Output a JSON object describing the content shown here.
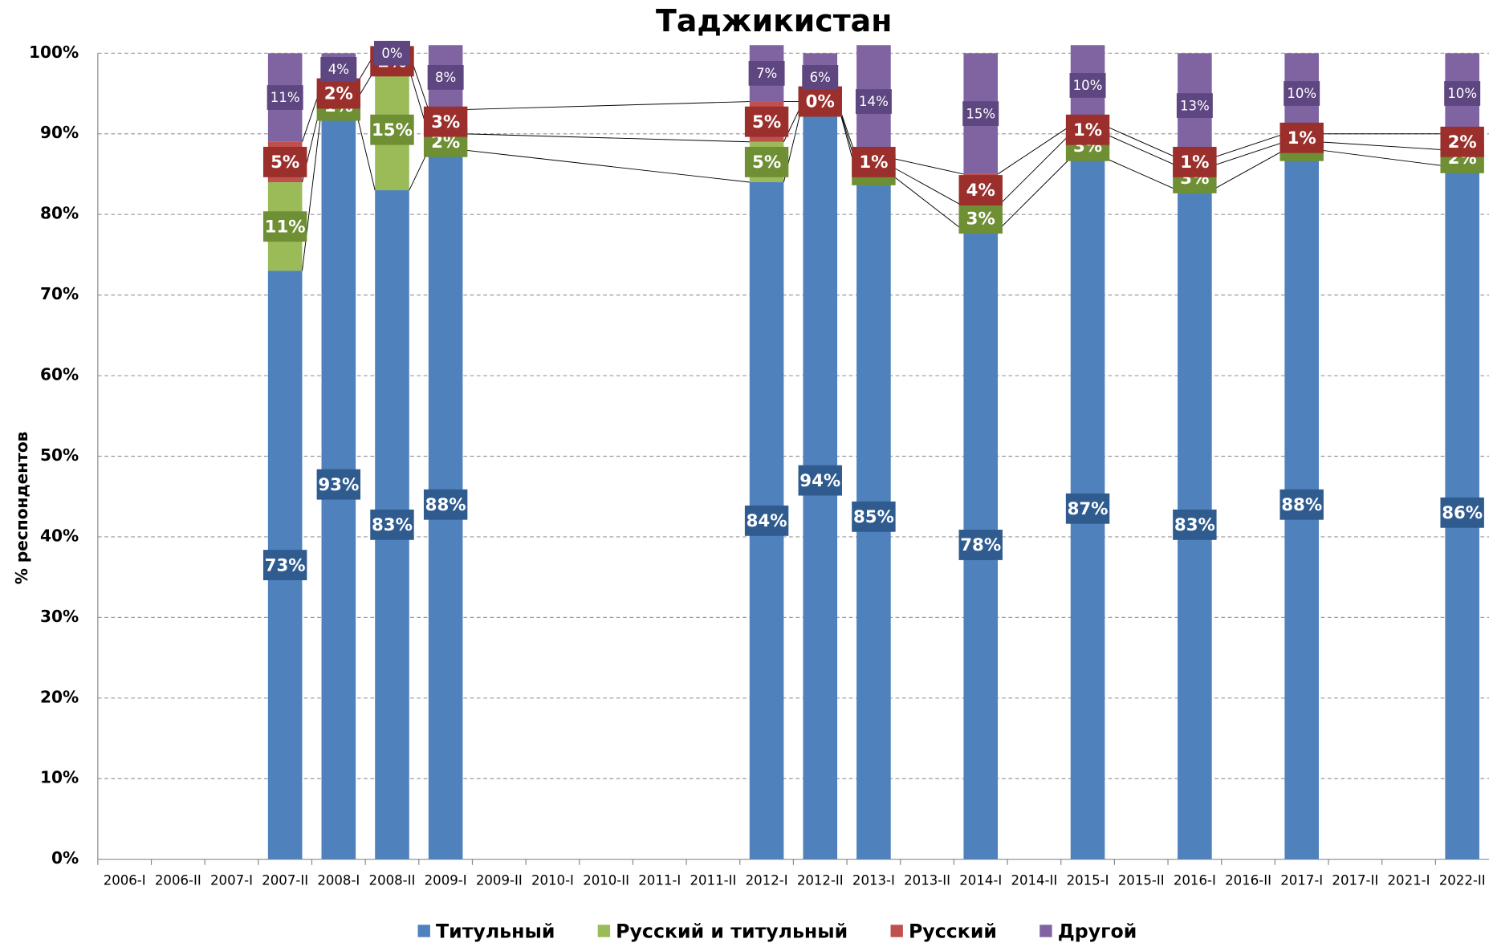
{
  "chart_data": {
    "type": "bar",
    "stacked": true,
    "title": "Таджикистан",
    "y_label": "% респондентов",
    "categories": [
      "2006-I",
      "2006-II",
      "2007-I",
      "2007-II",
      "2008-I",
      "2008-II",
      "2009-I",
      "2009-II",
      "2010-I",
      "2010-II",
      "2011-I",
      "2011-II",
      "2012-I",
      "2012-II",
      "2013-I",
      "2013-II",
      "2014-I",
      "2014-II",
      "2015-I",
      "2015-II",
      "2016-I",
      "2016-II",
      "2017-I",
      "2017-II",
      "2021-I",
      "2022-II"
    ],
    "series": [
      {
        "name": "Титульный",
        "color": "#4f81bd",
        "label_color": "#2f5b8f",
        "values": [
          null,
          null,
          null,
          73,
          93,
          83,
          88,
          null,
          null,
          null,
          null,
          null,
          84,
          94,
          85,
          null,
          78,
          null,
          87,
          null,
          83,
          null,
          88,
          null,
          null,
          86
        ],
        "value_labels": [
          null,
          null,
          null,
          "73%",
          "93%",
          "83%",
          "88%",
          null,
          null,
          null,
          null,
          null,
          "84%",
          "94%",
          "85%",
          null,
          "78%",
          null,
          "87%",
          null,
          "83%",
          null,
          "88%",
          null,
          null,
          "86%"
        ]
      },
      {
        "name": "Русский и титульный",
        "color": "#9bbb59",
        "label_color": "#6f8f35",
        "values": [
          null,
          null,
          null,
          11,
          1,
          15,
          2,
          null,
          null,
          null,
          null,
          null,
          5,
          0,
          1,
          null,
          3,
          null,
          3,
          null,
          3,
          null,
          1,
          null,
          null,
          2
        ],
        "value_labels": [
          null,
          null,
          null,
          "11%",
          "1%",
          "15%",
          "2%",
          null,
          null,
          null,
          null,
          null,
          "5%",
          "0%",
          "1%",
          null,
          "3%",
          null,
          "3%",
          null,
          "3%",
          null,
          "1%",
          null,
          null,
          "2%"
        ]
      },
      {
        "name": "Русский",
        "color": "#c0504d",
        "label_color": "#9a2f2c",
        "values": [
          null,
          null,
          null,
          5,
          2,
          2,
          3,
          null,
          null,
          null,
          null,
          null,
          5,
          0,
          1,
          null,
          4,
          null,
          1,
          null,
          1,
          null,
          1,
          null,
          null,
          2
        ],
        "value_labels": [
          null,
          null,
          null,
          "5%",
          "2%",
          "2%",
          "3%",
          null,
          null,
          null,
          null,
          null,
          "5%",
          "0%",
          "1%",
          null,
          "4%",
          null,
          "1%",
          null,
          "1%",
          null,
          "1%",
          null,
          null,
          "2%"
        ]
      },
      {
        "name": "Другой",
        "color": "#8064a2",
        "label_color": "#5e4680",
        "values": [
          null,
          null,
          null,
          11,
          4,
          0,
          8,
          null,
          null,
          null,
          null,
          null,
          7,
          6,
          14,
          null,
          15,
          null,
          10,
          null,
          13,
          null,
          10,
          null,
          null,
          10
        ],
        "value_labels": [
          null,
          null,
          null,
          "11%",
          "4%",
          "0%",
          "8%",
          null,
          null,
          null,
          null,
          null,
          "7%",
          "6%",
          "14%",
          null,
          "15%",
          null,
          "10%",
          null,
          "13%",
          null,
          "10%",
          null,
          null,
          "10%"
        ]
      }
    ],
    "ylim": [
      0,
      100
    ],
    "yticks": [
      {
        "value": 0,
        "label": "0%"
      },
      {
        "value": 10,
        "label": "10%"
      },
      {
        "value": 20,
        "label": "20%"
      },
      {
        "value": 30,
        "label": "30%"
      },
      {
        "value": 40,
        "label": "40%"
      },
      {
        "value": 50,
        "label": "50%"
      },
      {
        "value": 60,
        "label": "60%"
      },
      {
        "value": 70,
        "label": "70%"
      },
      {
        "value": 80,
        "label": "80%"
      },
      {
        "value": 90,
        "label": "90%"
      },
      {
        "value": 100,
        "label": "100%"
      }
    ],
    "grid": true,
    "legend": "bottom"
  }
}
